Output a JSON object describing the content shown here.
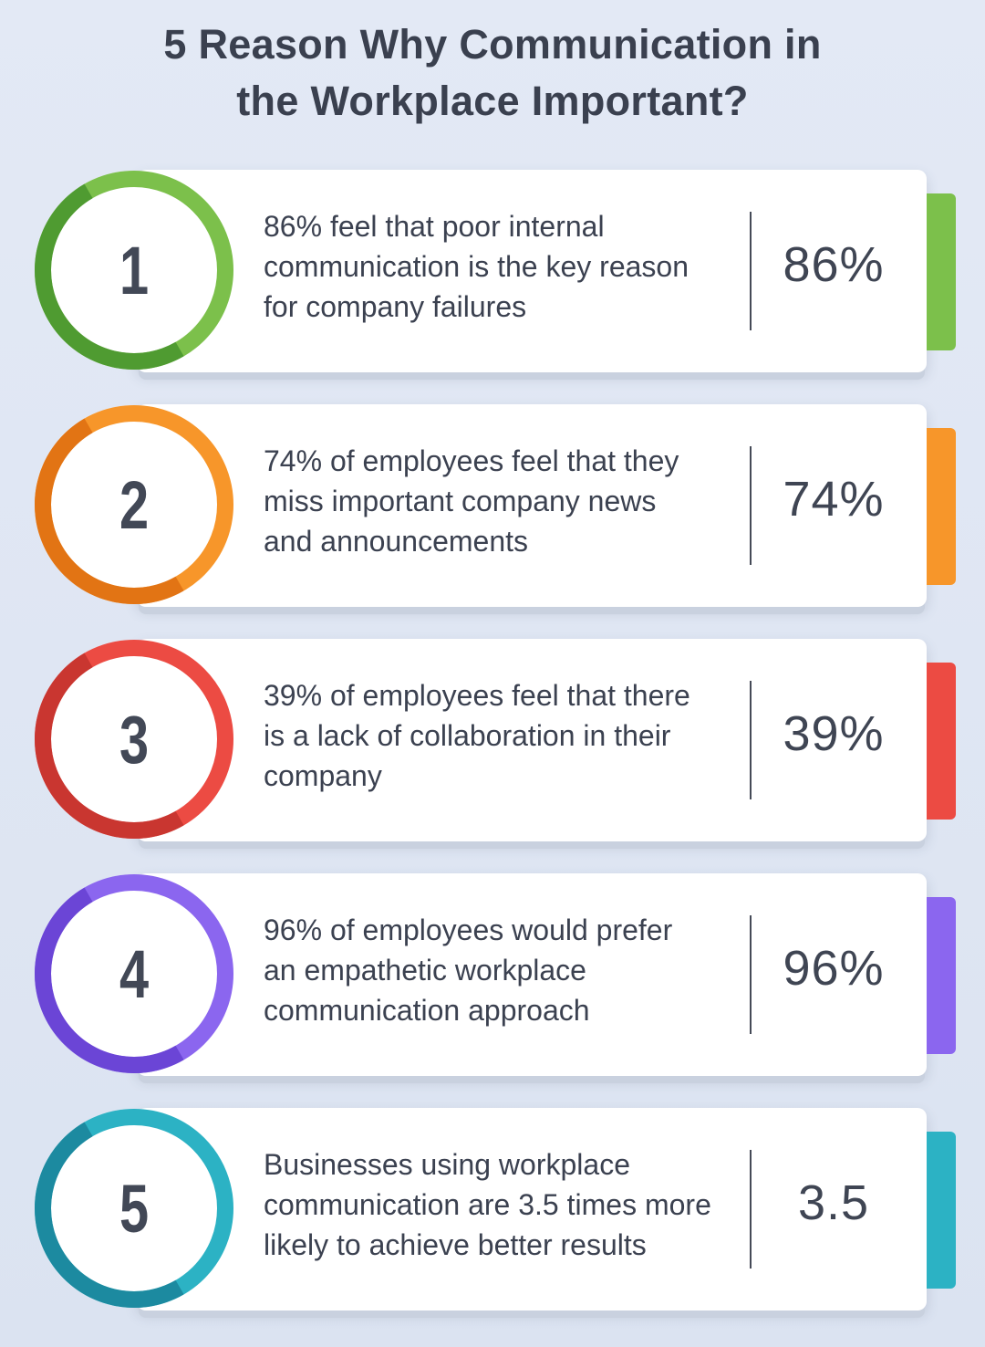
{
  "title": {
    "line1": "5 Reason Why Communication in",
    "line2": "the Workplace Important?"
  },
  "colors": {
    "green": "#7cc04b",
    "orange": "#f7962a",
    "red": "#ec4b43",
    "purple": "#8b66ef",
    "teal": "#2cb2c4"
  },
  "reasons": [
    {
      "number": "1",
      "line1": "86% feel that poor internal",
      "line2": "communication is the key reason",
      "line3": "for company failures",
      "stat": "86%",
      "color": "#7cc04b",
      "shade": "#4f9b31"
    },
    {
      "number": "2",
      "line1": "74% of employees feel that they",
      "line2": "miss important company news",
      "line3": "and announcements",
      "stat": "74%",
      "color": "#f7962a",
      "shade": "#e27414"
    },
    {
      "number": "3",
      "line1": "39% of employees feel that there",
      "line2": "is a lack of collaboration in their",
      "line3": "company",
      "stat": "39%",
      "color": "#ec4b43",
      "shade": "#c93630"
    },
    {
      "number": "4",
      "line1": "96% of employees would prefer",
      "line2": "an empathetic workplace",
      "line3": "communication approach",
      "stat": "96%",
      "color": "#8b66ef",
      "shade": "#6b45d6"
    },
    {
      "number": "5",
      "line1": "Businesses using workplace",
      "line2": "communication are 3.5 times more",
      "line3": "likely to achieve better results",
      "stat": "3.5",
      "color": "#2cb2c4",
      "shade": "#1c8aa0"
    }
  ]
}
